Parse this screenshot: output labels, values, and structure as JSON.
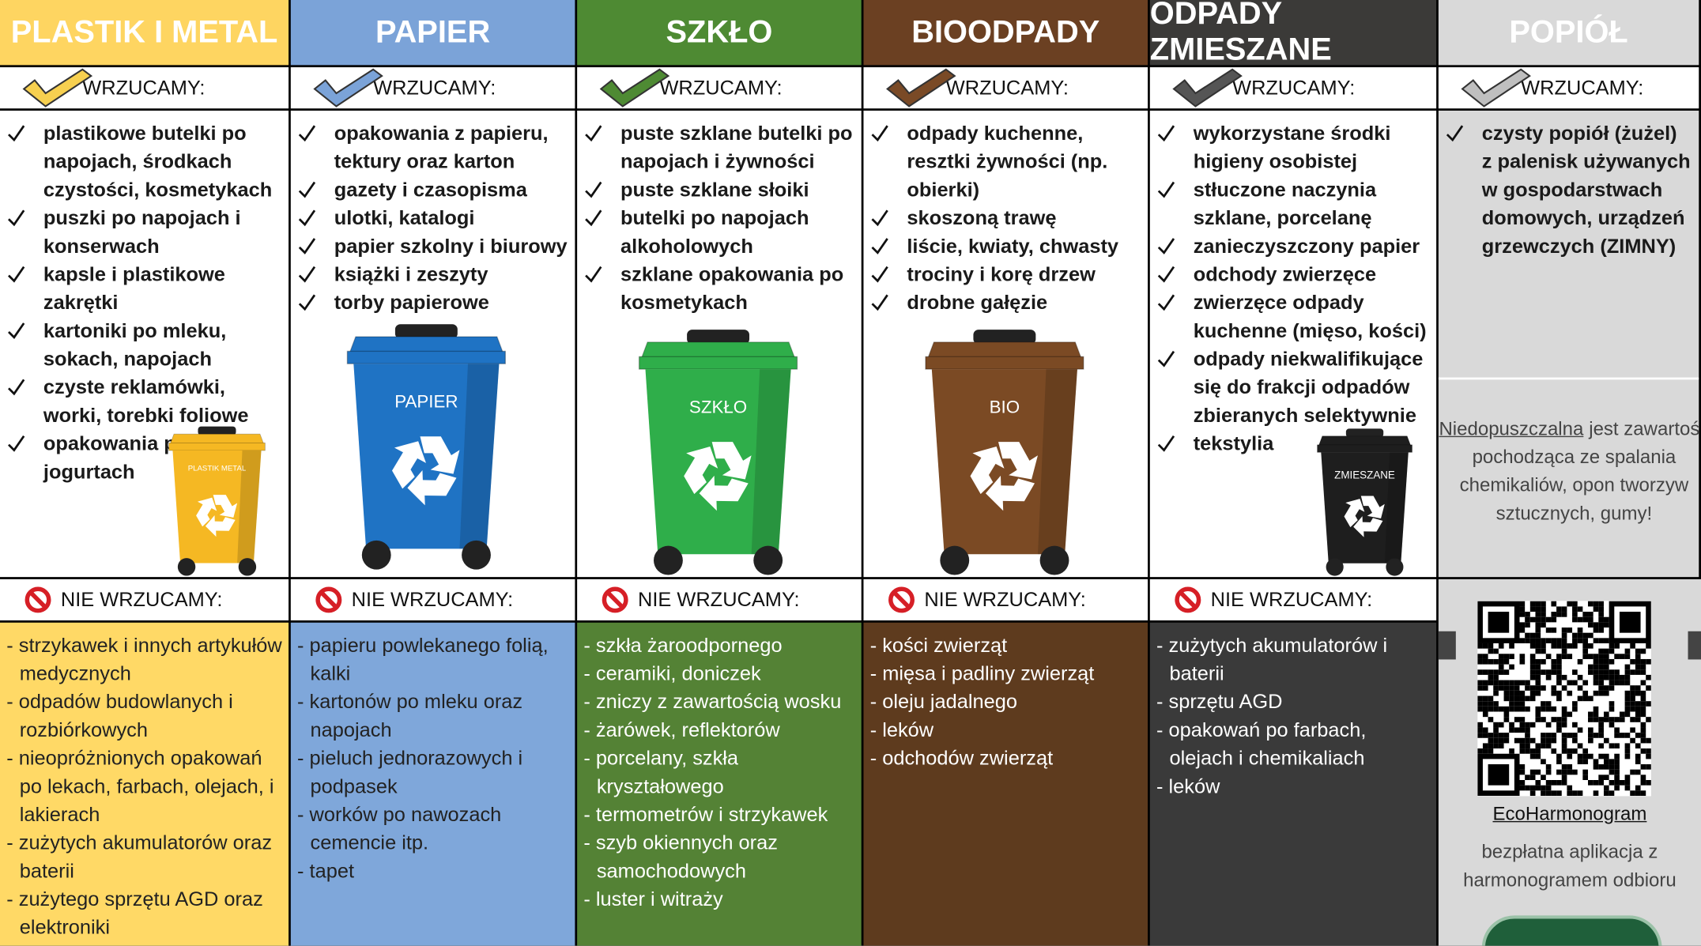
{
  "columns": [
    {
      "title": "PLASTIK I METAL",
      "header_color": "#fed561",
      "bottom_color": "#ffd966",
      "check_color": "#f7d050",
      "accept_label": "WRZUCAMY:",
      "accept": [
        "plastikowe butelki po napojach, środkach czystości, kosmetykach",
        "puszki po napojach i konserwach",
        "kapsle i plastikowe zakrętki",
        "kartoniki po mleku, sokach, napojach",
        "czyste reklamówki, worki, torebki foliowe",
        "opakowania po jogurtach"
      ],
      "bin_label": "PLASTIK METAL",
      "bin_color": "#f5b823",
      "reject_label": "NIE WRZUCAMY:",
      "reject": [
        "- strzykawek i innych artykułów medycznych",
        "- odpadów budowlanych i rozbiórkowych",
        "- nieopróżnionych opakowań po lekach, farbach, olejach, i lakierach",
        "- zużytych akumulatorów oraz baterii",
        "- zużytego sprzętu AGD oraz elektroniki"
      ],
      "reject_text_color": "#222"
    },
    {
      "title": "PAPIER",
      "header_color": "#7ba3d8",
      "bottom_color": "#7fa7da",
      "check_color": "#7ba3d8",
      "accept_label": "WRZUCAMY:",
      "accept": [
        "opakowania z papieru, tektury oraz karton",
        "gazety i czasopisma",
        "ulotki, katalogi",
        "papier szkolny i biurowy",
        "książki i zeszyty",
        "torby papierowe"
      ],
      "bin_label": "PAPIER",
      "bin_color": "#1f73c4",
      "reject_label": "NIE WRZUCAMY:",
      "reject": [
        "- papieru powlekanego folią, kalki",
        "- kartonów po mleku oraz napojach",
        "- pieluch jednorazowych i podpasek",
        "- worków po nawozach cemencie itp.",
        "- tapet"
      ],
      "reject_text_color": "#222"
    },
    {
      "title": "SZKŁO",
      "header_color": "#4e8a33",
      "bottom_color": "#548235",
      "check_color": "#4e8a33",
      "accept_label": "WRZUCAMY:",
      "accept": [
        "puste szklane butelki po napojach i żywności",
        "puste szklane słoiki",
        "butelki po napojach alkoholowych",
        "szklane opakowania po kosmetykach"
      ],
      "bin_label": "SZKŁO",
      "bin_color": "#2fae4a",
      "reject_label": "NIE WRZUCAMY:",
      "reject": [
        "- szkła żaroodpornego",
        "- ceramiki, doniczek",
        "- zniczy z zawartością wosku",
        "- żarówek, reflektorów",
        "- porcelany, szkła kryształowego",
        "- termometrów i strzykawek",
        "- szyb okiennych oraz samochodowych",
        "- luster i witraży"
      ],
      "reject_text_color": "#fff"
    },
    {
      "title": "BIOODPADY",
      "header_color": "#6b4022",
      "bottom_color": "#5e3b1e",
      "check_color": "#7a4a26",
      "accept_label": "WRZUCAMY:",
      "accept": [
        "odpady kuchenne, resztki żywności (np. obierki)",
        "skoszoną trawę",
        "liście, kwiaty, chwasty",
        "trociny i korę drzew",
        "drobne gałęzie"
      ],
      "bin_label": "BIO",
      "bin_color": "#7b4a24",
      "reject_label": "NIE WRZUCAMY:",
      "reject": [
        "- kości zwierząt",
        "- mięsa i padliny zwierząt",
        "- oleju jadalnego",
        "- leków",
        "- odchodów zwierząt"
      ],
      "reject_text_color": "#fff"
    },
    {
      "title": "ODPADY ZMIESZANE",
      "header_color": "#3b3a38",
      "bottom_color": "#3a3a3a",
      "check_color": "#555555",
      "accept_label": "WRZUCAMY:",
      "accept": [
        "wykorzystane środki higieny osobistej",
        "stłuczone naczynia szklane, porcelanę",
        "zanieczyszczony papier",
        "odchody zwierzęce",
        "zwierzęce odpady kuchenne (mięso, kości)",
        "odpady niekwalifikujące się do frakcji odpadów zbieranych selektywnie",
        "tekstylia"
      ],
      "bin_label": "ZMIESZANE",
      "bin_color": "#1e1e1e",
      "reject_label": "NIE WRZUCAMY:",
      "reject": [
        "- zużytych akumulatorów i baterii",
        "- sprzętu AGD",
        "- opakowań po farbach, olejach i chemikaliach",
        "- leków"
      ],
      "reject_text_color": "#fff"
    },
    {
      "title": "POPIÓŁ",
      "header_color": "#d9d9d9",
      "bottom_color": "#d9d9d9",
      "check_color": "#bfbfbf",
      "accept_label": "WRZUCAMY:",
      "accept": [
        "czysty popiół (żużel) z palenisk używanych w gospodarstwach domowych, urządzeń grzewczych (ZIMNY)"
      ],
      "note_underlined": "Niedopuszczalna",
      "note_rest": "jest zawartość pochodząca ze spalania chemikaliów, opon tworzyw sztucznych, gumy!",
      "app_name": "EcoHarmonogram",
      "app_description": "bezpłatna aplikacja z harmonogramem odbioru"
    }
  ]
}
